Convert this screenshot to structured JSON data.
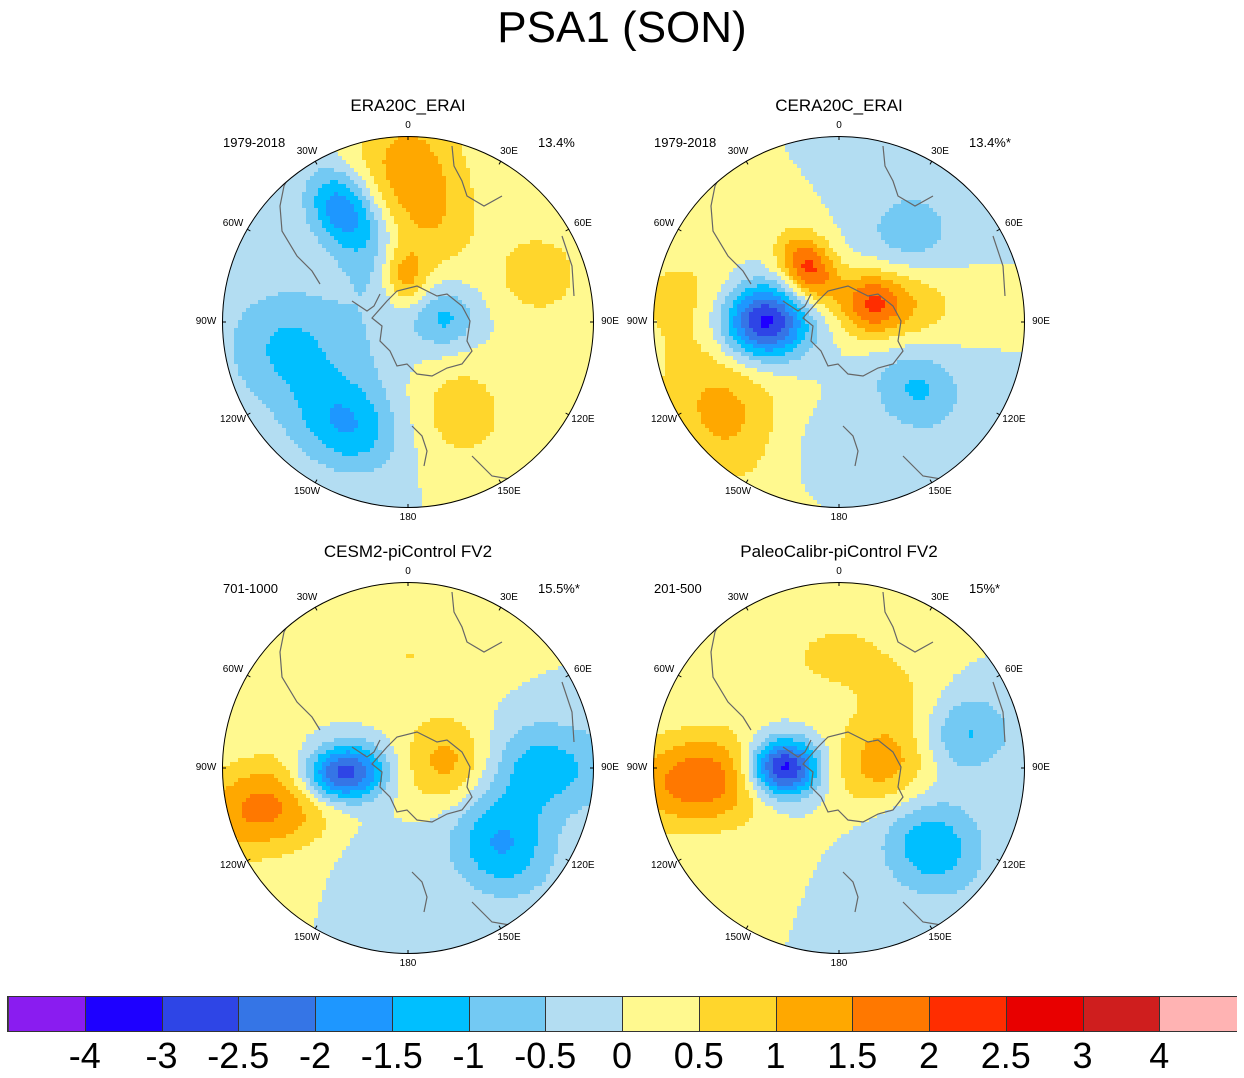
{
  "title": "PSA1 (SON)",
  "panels": [
    {
      "title": "ERA20C_ERAI",
      "period": "1979-2018",
      "variance": "13.4%",
      "anomalies": [
        {
          "lon": 355,
          "colat": 0.25,
          "a": 1.6,
          "sx": 0.09,
          "sy": 0.12
        },
        {
          "lon": 0,
          "colat": 0.78,
          "a": 1.3,
          "sx": 0.22,
          "sy": 0.3
        },
        {
          "lon": 70,
          "colat": 0.75,
          "a": 0.9,
          "sx": 0.16,
          "sy": 0.16
        },
        {
          "lon": 20,
          "colat": 0.5,
          "a": 0.4,
          "sx": 0.18,
          "sy": 0.2
        },
        {
          "lon": 330,
          "colat": 0.7,
          "a": -2.0,
          "sx": 0.12,
          "sy": 0.16
        },
        {
          "lon": 340,
          "colat": 0.35,
          "a": -0.9,
          "sx": 0.15,
          "sy": 0.2
        },
        {
          "lon": 85,
          "colat": 0.2,
          "a": -1.1,
          "sx": 0.12,
          "sy": 0.12
        },
        {
          "lon": 210,
          "colat": 0.65,
          "a": -1.3,
          "sx": 0.2,
          "sy": 0.16
        },
        {
          "lon": 260,
          "colat": 0.7,
          "a": -0.8,
          "sx": 0.22,
          "sy": 0.22
        },
        {
          "lon": 240,
          "colat": 0.45,
          "a": -0.5,
          "sx": 0.3,
          "sy": 0.3
        },
        {
          "lon": 150,
          "colat": 0.55,
          "a": 0.8,
          "sx": 0.2,
          "sy": 0.22
        }
      ]
    },
    {
      "title": "CERA20C_ERAI",
      "period": "1979-2018",
      "variance": "13.4%*",
      "anomalies": [
        {
          "lon": 270,
          "colat": 0.4,
          "a": -3.3,
          "sx": 0.14,
          "sy": 0.16
        },
        {
          "lon": 330,
          "colat": 0.33,
          "a": 2.2,
          "sx": 0.1,
          "sy": 0.14
        },
        {
          "lon": 60,
          "colat": 0.2,
          "a": 1.8,
          "sx": 0.12,
          "sy": 0.12
        },
        {
          "lon": 75,
          "colat": 0.42,
          "a": 0.9,
          "sx": 0.18,
          "sy": 0.18
        },
        {
          "lon": 40,
          "colat": 0.6,
          "a": -0.9,
          "sx": 0.18,
          "sy": 0.18
        },
        {
          "lon": 130,
          "colat": 0.55,
          "a": -1.1,
          "sx": 0.16,
          "sy": 0.18
        },
        {
          "lon": 230,
          "colat": 0.78,
          "a": 1.2,
          "sx": 0.3,
          "sy": 0.24
        },
        {
          "lon": 280,
          "colat": 0.85,
          "a": 0.6,
          "sx": 0.2,
          "sy": 0.25
        },
        {
          "lon": 200,
          "colat": 0.7,
          "a": -0.4,
          "sx": 0.2,
          "sy": 0.2
        }
      ]
    },
    {
      "title": "CESM2-piControl FV2",
      "period": "701-1000",
      "variance": "15.5%*",
      "anomalies": [
        {
          "lon": 265,
          "colat": 0.35,
          "a": -3.2,
          "sx": 0.11,
          "sy": 0.16
        },
        {
          "lon": 85,
          "colat": 0.25,
          "a": 1.7,
          "sx": 0.17,
          "sy": 0.2
        },
        {
          "lon": 255,
          "colat": 0.78,
          "a": 1.7,
          "sx": 0.18,
          "sy": 0.3
        },
        {
          "lon": 90,
          "colat": 0.65,
          "a": -1.4,
          "sx": 0.18,
          "sy": 0.32
        },
        {
          "lon": 130,
          "colat": 0.65,
          "a": -1.5,
          "sx": 0.18,
          "sy": 0.2
        },
        {
          "lon": 0,
          "colat": 0.6,
          "a": 0.5,
          "sx": 0.3,
          "sy": 0.2
        },
        {
          "lon": 200,
          "colat": 0.5,
          "a": -0.3,
          "sx": 0.15,
          "sy": 0.15
        }
      ]
    },
    {
      "title": "PaleoCalibr-piControl FV2",
      "period": "201-500",
      "variance": "15%*",
      "anomalies": [
        {
          "lon": 270,
          "colat": 0.3,
          "a": -3.6,
          "sx": 0.11,
          "sy": 0.13
        },
        {
          "lon": 85,
          "colat": 0.25,
          "a": 1.3,
          "sx": 0.17,
          "sy": 0.2
        },
        {
          "lon": 265,
          "colat": 0.75,
          "a": 1.9,
          "sx": 0.18,
          "sy": 0.28
        },
        {
          "lon": 75,
          "colat": 0.7,
          "a": -1.1,
          "sx": 0.15,
          "sy": 0.18
        },
        {
          "lon": 130,
          "colat": 0.65,
          "a": -1.4,
          "sx": 0.18,
          "sy": 0.2
        },
        {
          "lon": 0,
          "colat": 0.6,
          "a": 0.6,
          "sx": 0.3,
          "sy": 0.2
        },
        {
          "lon": 45,
          "colat": 0.5,
          "a": 0.4,
          "sx": 0.15,
          "sy": 0.15
        }
      ]
    }
  ],
  "longitude_labels": [
    "0",
    "30E",
    "60E",
    "90E",
    "120E",
    "150E",
    "180",
    "150W",
    "120W",
    "90W",
    "60W",
    "30W"
  ],
  "colorbar": {
    "labels": [
      "-4",
      "-3",
      "-2.5",
      "-2",
      "-1.5",
      "-1",
      "-0.5",
      "0",
      "0.5",
      "1",
      "1.5",
      "2",
      "2.5",
      "3",
      "4"
    ],
    "colors": [
      "#8a1cf0",
      "#1e00ff",
      "#2e45e6",
      "#3575e6",
      "#1e97ff",
      "#00bfff",
      "#73c9f3",
      "#b3ddf2",
      "#fff98f",
      "#ffd62c",
      "#ffa800",
      "#ff7800",
      "#ff2d00",
      "#e80000",
      "#cf1e1e",
      "#ffb3b3"
    ]
  }
}
